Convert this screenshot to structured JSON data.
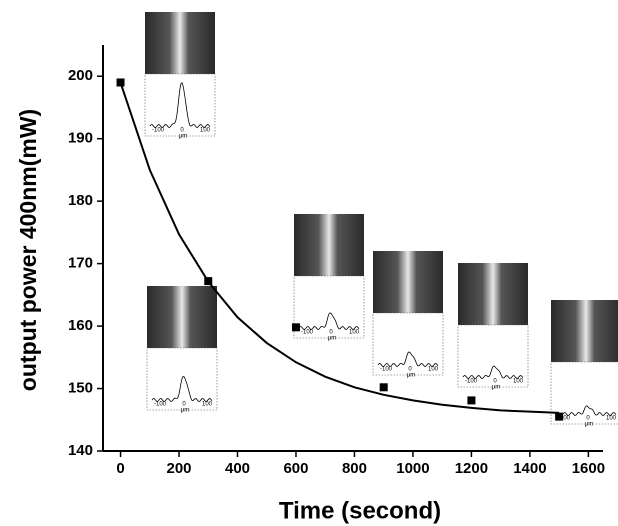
{
  "chart_data": {
    "type": "scatter",
    "xlabel": "Time (second)",
    "ylabel": "output power 400nm(mW)",
    "xlim": [
      -60,
      1650
    ],
    "ylim": [
      140,
      205
    ],
    "xticks": [
      0,
      200,
      400,
      600,
      800,
      1000,
      1200,
      1400,
      1600
    ],
    "yticks": [
      140,
      150,
      160,
      170,
      180,
      190,
      200
    ],
    "series": [
      {
        "kind": "points",
        "color": "#000000",
        "x": [
          0,
          300,
          600,
          900,
          1200,
          1500
        ],
        "values": [
          199,
          167.2,
          159.8,
          150.2,
          148.1,
          145.5
        ]
      },
      {
        "kind": "line",
        "color": "#000000",
        "x": [
          0,
          100,
          200,
          300,
          400,
          500,
          600,
          700,
          800,
          900,
          1000,
          1100,
          1200,
          1300,
          1400,
          1500
        ],
        "values": [
          199,
          185.0,
          174.7,
          167.1,
          161.4,
          157.3,
          154.2,
          151.9,
          150.2,
          149.0,
          148.1,
          147.4,
          146.9,
          146.5,
          146.3,
          146.1
        ]
      }
    ],
    "insets": {
      "tick_labels": [
        "-100",
        "0",
        "100"
      ],
      "unit": "μm"
    }
  }
}
